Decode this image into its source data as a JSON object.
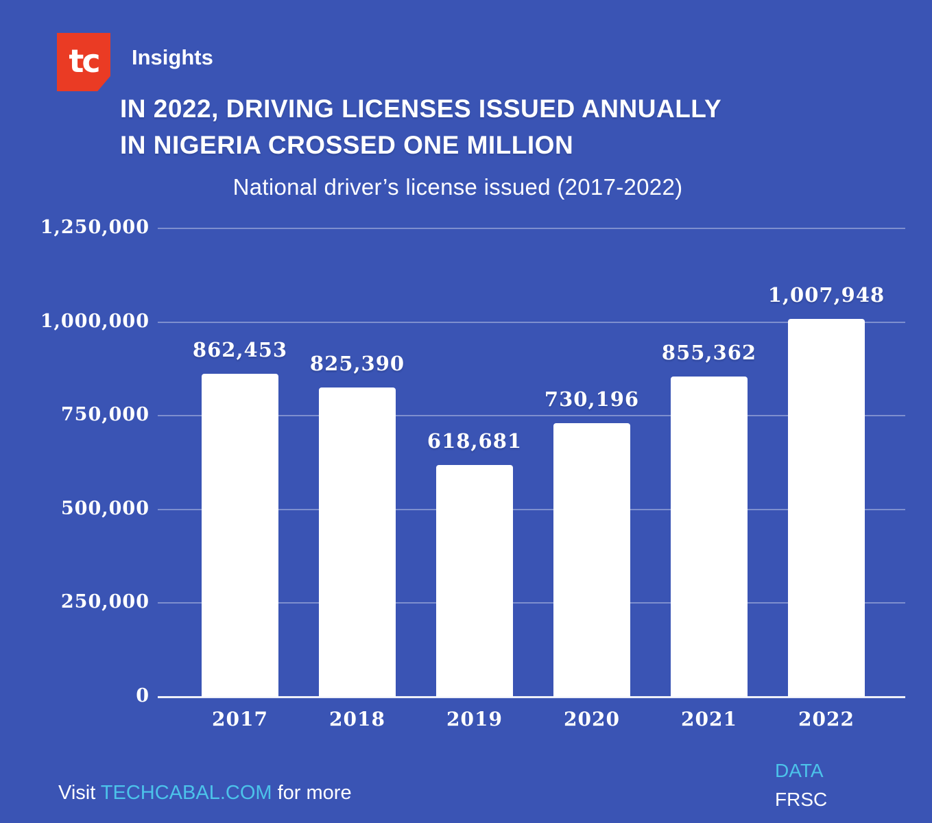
{
  "brand": {
    "logo_text": "tc",
    "logo_color": "#ea3b24",
    "insights_label": "Insights"
  },
  "header": {
    "title_line1": "IN 2022, DRIVING LICENSES ISSUED ANNUALLY",
    "title_line2": "IN NIGERIA CROSSED ONE MILLION"
  },
  "chart_data": {
    "type": "bar",
    "title": "National driver’s license issued (2017-2022)",
    "categories": [
      "2017",
      "2018",
      "2019",
      "2020",
      "2021",
      "2022"
    ],
    "values": [
      862453,
      825390,
      618681,
      730196,
      855362,
      1007948
    ],
    "value_labels": [
      "862,453",
      "825,390",
      "618,681",
      "730,196",
      "855,362",
      "1,007,948"
    ],
    "y_ticks": [
      "1,250,000",
      "1,000,000",
      "750,000",
      "500,000",
      "250,000",
      "0"
    ],
    "y_tick_values": [
      1250000,
      1000000,
      750000,
      500000,
      250000,
      0
    ],
    "ylim": [
      0,
      1250000
    ],
    "xlabel": "",
    "ylabel": "",
    "grid": true,
    "legend": "none",
    "bar_color": "#ffffff",
    "background_color": "#3a54b4",
    "gridline_color": "rgba(255,255,255,0.35)"
  },
  "footer": {
    "visit_prefix": "Visit ",
    "visit_link": "TECHCABAL.COM",
    "visit_suffix": " for more",
    "data_label": "DATA",
    "data_source": "FRSC"
  },
  "colors": {
    "accent_cyan": "#4cc3ea",
    "brand_red": "#ea3b24",
    "background_blue": "#3a54b4",
    "text_white": "#ffffff"
  }
}
